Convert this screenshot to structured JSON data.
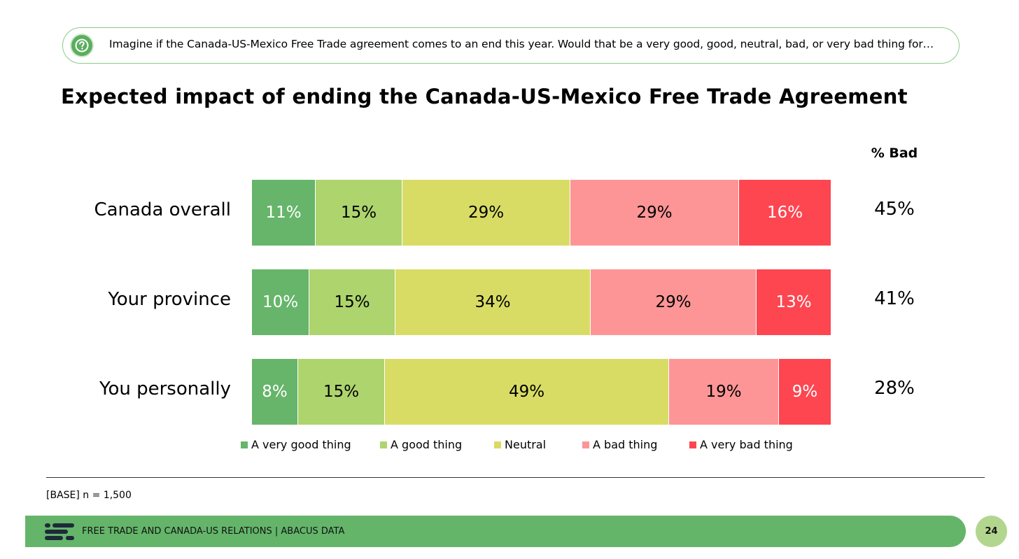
{
  "question": "Imagine if the Canada-US-Mexico Free Trade agreement comes to an end this year. Would that be a very good, good, neutral, bad, or very bad thing for…",
  "colors": {
    "very_good": "#66b56a",
    "good": "#aed46e",
    "neutral": "#d9dc64",
    "bad": "#fd9596",
    "very_bad": "#fd4650",
    "footer": "#64b56a",
    "page_badge": "#b3d68f"
  },
  "chart_data": {
    "type": "bar",
    "orientation": "horizontal",
    "stacked": true,
    "title": "Expected impact of ending the Canada-US-Mexico Free Trade Agreement",
    "categories": [
      "Canada overall",
      "Your province",
      "You personally"
    ],
    "series": [
      {
        "name": "A very good thing",
        "values": [
          11,
          10,
          8
        ],
        "labels": [
          "11%",
          "10%",
          "8%"
        ],
        "color": "#66b56a",
        "label_color": "#ffffff"
      },
      {
        "name": "A good thing",
        "values": [
          15,
          15,
          15
        ],
        "labels": [
          "15%",
          "15%",
          "15%"
        ],
        "color": "#aed46e",
        "label_color": "#000000"
      },
      {
        "name": "Neutral",
        "values": [
          29,
          34,
          49
        ],
        "labels": [
          "29%",
          "34%",
          "49%"
        ],
        "color": "#d9dc64",
        "label_color": "#000000"
      },
      {
        "name": "A bad thing",
        "values": [
          29,
          29,
          19
        ],
        "labels": [
          "29%",
          "29%",
          "19%"
        ],
        "color": "#fd9596",
        "label_color": "#000000"
      },
      {
        "name": "A very bad thing",
        "values": [
          16,
          13,
          9
        ],
        "labels": [
          "16%",
          "13%",
          "9%"
        ],
        "color": "#fd4650",
        "label_color": "#ffffff"
      }
    ],
    "pct_bad": {
      "header": "% Bad",
      "values": [
        "45%",
        "41%",
        "28%"
      ]
    },
    "legend_position": "bottom",
    "grid": false
  },
  "base_note": "[BASE] n = 1,500",
  "footer": {
    "text": "FREE TRADE AND CANADA-US RELATIONS  |  ABACUS DATA",
    "page_number": "24",
    "logo_icon": "abacus-logo-icon"
  }
}
